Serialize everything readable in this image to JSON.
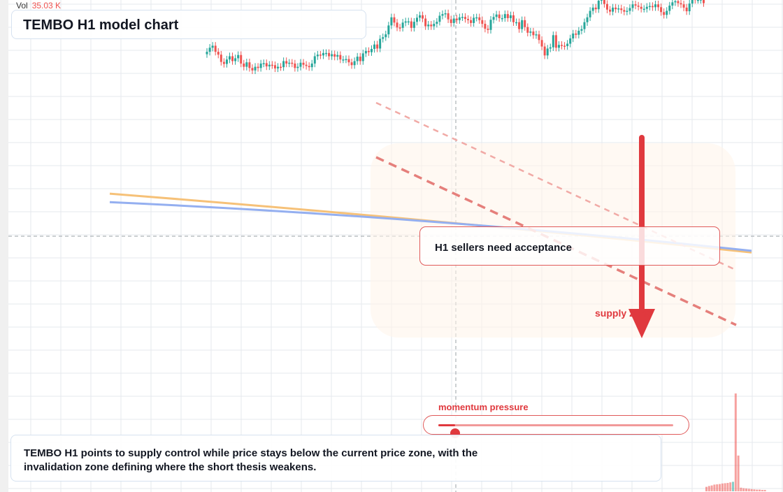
{
  "volume": {
    "label": "Vol",
    "value": "35.03 K"
  },
  "title": "TEMBO H1 model chart",
  "callout": "H1 sellers need acceptance",
  "zone_label": "supply zone",
  "momentum": {
    "label": "momentum pressure",
    "level": 0.07
  },
  "note": "TEMBO H1 points to supply control while price stays below the current price zone, with the invalidation zone defining where the short thesis weakens.",
  "colors": {
    "up": "#26a69a",
    "down": "#ef5350",
    "accent": "#e0393e",
    "orange_line": "#f6c178",
    "blue_line": "#94aff0",
    "grid": "#e6e9ee"
  },
  "icons": {
    "arrow": "down-arrow-icon"
  },
  "chart_data": {
    "type": "candlestick",
    "series": [
      {
        "name": "close",
        "values": [
          75.5,
          76.5,
          77.0,
          75.5,
          74.8,
          73.0,
          72.5,
          73.6,
          74.4,
          73.2,
          73.9,
          74.7,
          72.6,
          71.8,
          72.9,
          71.5,
          70.9,
          71.8,
          71.5,
          72.6,
          72.7,
          71.9,
          72.3,
          72.2,
          71.4,
          71.8,
          71.7,
          73.2,
          72.6,
          72.8,
          72.6,
          71.5,
          71.8,
          72.8,
          72.3,
          72.0,
          71.7,
          72.6,
          74.4,
          74.8,
          74.6,
          75.2,
          75.2,
          74.4,
          74.9,
          74.3,
          74.7,
          73.6,
          73.6,
          73.7,
          72.9,
          72.2,
          73.2,
          74.3,
          73.2,
          75.1,
          75.7,
          75.4,
          76.2,
          77.3,
          76.3,
          78.7,
          79.1,
          79.8,
          82.0,
          84.0,
          82.7,
          81.5,
          81.4,
          82.7,
          83.0,
          83.0,
          81.4,
          82.9,
          83.9,
          84.5,
          83.7,
          81.8,
          82.2,
          81.8,
          82.4,
          82.9,
          84.4,
          84.8,
          85.0,
          83.5,
          82.6,
          83.7,
          83.3,
          84.0,
          84.1,
          83.6,
          83.3,
          82.6,
          83.9,
          84.0,
          83.3,
          82.4,
          81.2,
          80.9,
          83.4,
          84.1,
          84.7,
          83.8,
          83.8,
          84.8,
          83.8,
          84.5,
          82.8,
          82.8,
          81.1,
          83.3,
          81.6,
          80.2,
          80.5,
          79.6,
          79.8,
          78.4,
          76.8,
          74.6,
          76.3,
          76.6,
          79.6,
          76.5,
          77.2,
          77.0,
          76.9,
          77.5,
          78.8,
          80.0,
          79.7,
          80.7,
          81.1,
          82.8,
          84.0,
          85.6,
          86.4,
          86.0,
          88.1,
          88.8,
          87.3,
          85.9,
          85.4,
          86.4,
          86.0,
          86.2,
          85.8,
          85.4,
          85.6,
          86.3,
          87.2,
          86.9,
          86.6,
          86.1,
          86.1,
          86.6,
          86.8,
          86.5,
          87.2,
          86.5,
          85.3,
          84.6,
          85.6,
          86.9,
          87.7,
          88.0,
          87.5,
          87.2,
          86.4,
          85.5,
          87.4,
          88.5,
          88.3,
          88.3,
          88.4,
          87.5
        ]
      }
    ],
    "lines": [
      {
        "name": "orange",
        "values": [
          40.5,
          26.0
        ]
      },
      {
        "name": "blue",
        "values": [
          38.4,
          26.4
        ]
      }
    ],
    "volume": [
      1.6,
      1.9,
      2.1,
      2.4,
      2.5,
      2.6,
      2.8,
      2.9,
      3.0,
      3.2,
      3.4,
      35.03,
      12.8,
      1.3,
      1.1,
      1.0,
      0.9,
      0.8,
      0.7,
      0.6,
      0.6,
      0.5,
      0.5
    ]
  }
}
